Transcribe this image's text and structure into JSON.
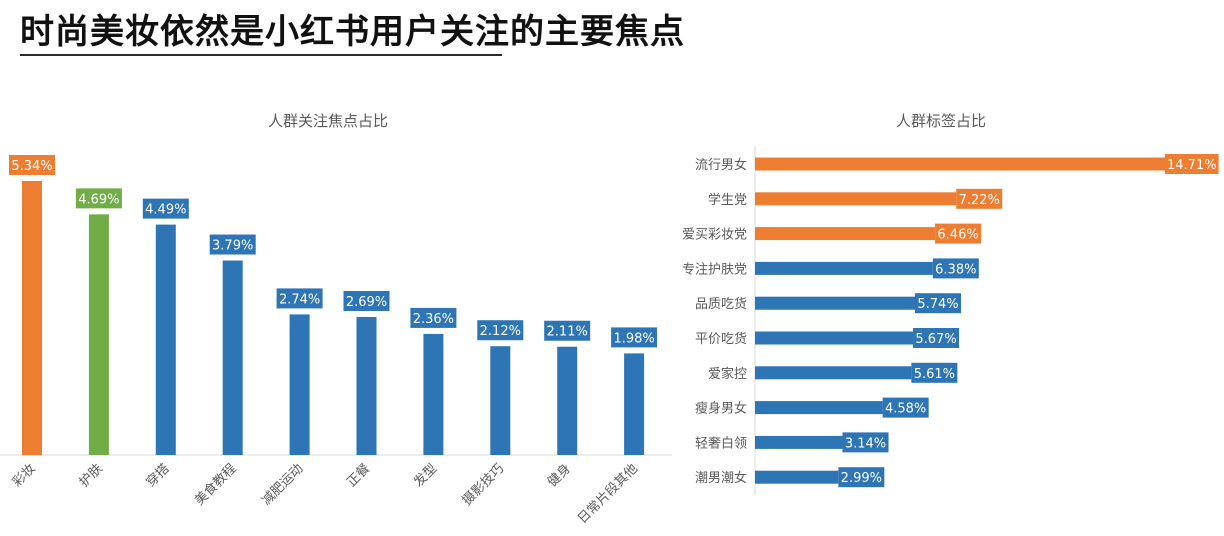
{
  "page": {
    "title": "时尚美妆依然是小红书用户关注的主要焦点"
  },
  "colors": {
    "orange": "#ED7D31",
    "green": "#70AD47",
    "blue": "#2E75B6",
    "text": "#595959",
    "axis": "#D9D9D9"
  },
  "chart_data": [
    {
      "type": "bar",
      "orientation": "vertical",
      "title": "人群关注焦点占比",
      "categories": [
        "彩妆",
        "护肤",
        "穿搭",
        "美食教程",
        "减肥运动",
        "正餐",
        "发型",
        "摄影技巧",
        "健身",
        "日常片段其他"
      ],
      "values": [
        5.34,
        4.69,
        4.49,
        3.79,
        2.74,
        2.69,
        2.36,
        2.12,
        2.11,
        1.98
      ],
      "data_labels": [
        "5.34%",
        "4.69%",
        "4.49%",
        "3.79%",
        "2.74%",
        "2.69%",
        "2.36%",
        "2.12%",
        "2.11%",
        "1.98%"
      ],
      "bar_colors": [
        "#ED7D31",
        "#70AD47",
        "#2E75B6",
        "#2E75B6",
        "#2E75B6",
        "#2E75B6",
        "#2E75B6",
        "#2E75B6",
        "#2E75B6",
        "#2E75B6"
      ],
      "unit": "%",
      "ylim": [
        0,
        5.34
      ],
      "grid": false,
      "legend": "none"
    },
    {
      "type": "bar",
      "orientation": "horizontal",
      "title": "人群标签占比",
      "categories": [
        "流行男女",
        "学生党",
        "爱买彩妆党",
        "专注护肤党",
        "品质吃货",
        "平价吃货",
        "爱家控",
        "瘦身男女",
        "轻奢白领",
        "潮男潮女"
      ],
      "values": [
        14.71,
        7.22,
        6.46,
        6.38,
        5.74,
        5.67,
        5.61,
        4.58,
        3.14,
        2.99
      ],
      "data_labels": [
        "14.71%",
        "7.22%",
        "6.46%",
        "6.38%",
        "5.74%",
        "5.67%",
        "5.61%",
        "4.58%",
        "3.14%",
        "2.99%"
      ],
      "bar_colors": [
        "#ED7D31",
        "#ED7D31",
        "#ED7D31",
        "#2E75B6",
        "#2E75B6",
        "#2E75B6",
        "#2E75B6",
        "#2E75B6",
        "#2E75B6",
        "#2E75B6"
      ],
      "unit": "%",
      "xlim": [
        0,
        14.71
      ],
      "grid": false,
      "legend": "none"
    }
  ]
}
